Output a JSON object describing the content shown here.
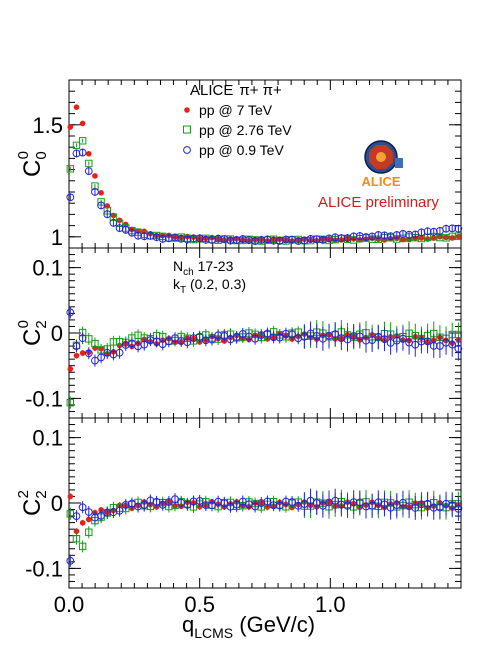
{
  "header": {
    "experiment": "ALICE",
    "particles": "π+ π+",
    "logo_text": "ALICE",
    "preliminary": "ALICE preliminary"
  },
  "annotation": {
    "nch_main": "N",
    "nch_sub": "ch",
    "nch_range": " 17-23",
    "kt_main": "k",
    "kt_sub": "T",
    "kt_range": " (0.2, 0.3)"
  },
  "colors": {
    "pp7": "#e8201a",
    "pp276": "#169c16",
    "pp09": "#2525d6",
    "preliminary": "#d21c1c",
    "logo_orange": "#f28a1d"
  },
  "chart_data": [
    {
      "type": "scatter",
      "panel": "top",
      "ylabel_main": "C",
      "ylabel_sub": "0",
      "ylabel_sup": "0",
      "ylim": [
        0.95,
        1.7
      ],
      "yticks": [
        1,
        1.5
      ],
      "ytick_labels": [
        "1",
        "1.5"
      ],
      "xlim": [
        0,
        1.5
      ],
      "legend": "top-center",
      "series": [
        {
          "name": "pp @ 7 TeV",
          "marker": "filled-circle",
          "x": [
            0.005,
            0.025,
            0.045,
            0.065,
            0.09,
            0.13,
            0.18,
            0.25,
            0.35,
            0.5,
            0.7,
            0.9,
            1.1,
            1.3,
            1.49
          ],
          "y": [
            1.49,
            1.58,
            1.55,
            1.43,
            1.3,
            1.17,
            1.08,
            1.03,
            1.005,
            0.995,
            0.985,
            0.985,
            0.99,
            0.99,
            1.0
          ]
        },
        {
          "name": "pp @ 2.76 TeV",
          "marker": "open-square",
          "x": [
            0.005,
            0.025,
            0.045,
            0.065,
            0.09,
            0.13,
            0.18,
            0.25,
            0.35,
            0.5,
            0.7,
            0.9,
            1.1,
            1.3,
            1.49
          ],
          "y": [
            1.3,
            1.4,
            1.46,
            1.38,
            1.25,
            1.14,
            1.07,
            1.02,
            1.0,
            0.99,
            0.985,
            0.985,
            0.99,
            0.995,
            1.0
          ]
        },
        {
          "name": "pp @ 0.9 TeV",
          "marker": "open-circle",
          "x": [
            0.005,
            0.025,
            0.045,
            0.065,
            0.09,
            0.13,
            0.18,
            0.25,
            0.35,
            0.5,
            0.7,
            0.9,
            1.1,
            1.3,
            1.49
          ],
          "y": [
            1.18,
            1.37,
            1.39,
            1.34,
            1.23,
            1.12,
            1.05,
            1.01,
            0.995,
            0.99,
            0.985,
            0.985,
            1.0,
            1.01,
            1.04
          ]
        }
      ]
    },
    {
      "type": "scatter",
      "panel": "middle",
      "ylabel_main": "C",
      "ylabel_sub": "2",
      "ylabel_sup": "0",
      "ylim": [
        -0.13,
        0.13
      ],
      "yticks": [
        -0.1,
        0,
        0.1
      ],
      "ytick_labels": [
        "-0.1",
        "0",
        "0.1"
      ],
      "xlim": [
        0,
        1.5
      ],
      "series": [
        {
          "name": "pp @ 7 TeV",
          "x": [
            0.005,
            0.025,
            0.05,
            0.08,
            0.11,
            0.14,
            0.18,
            0.22,
            0.3,
            0.4,
            0.6,
            0.8,
            1.0,
            1.2,
            1.49
          ],
          "y": [
            -0.055,
            -0.04,
            -0.03,
            -0.025,
            -0.025,
            -0.03,
            -0.025,
            -0.018,
            -0.013,
            -0.012,
            -0.008,
            -0.005,
            -0.006,
            -0.007,
            -0.012
          ]
        },
        {
          "name": "pp @ 2.76 TeV",
          "x": [
            0.005,
            0.025,
            0.05,
            0.08,
            0.11,
            0.14,
            0.18,
            0.22,
            0.3,
            0.4,
            0.6,
            0.8,
            1.0,
            1.2,
            1.49
          ],
          "y": [
            -0.11,
            -0.02,
            0.005,
            -0.015,
            -0.02,
            -0.025,
            -0.015,
            -0.01,
            -0.005,
            -0.01,
            -0.005,
            -0.002,
            -0.002,
            -0.004,
            -0.005
          ]
        },
        {
          "name": "pp @ 0.9 TeV",
          "x": [
            0.005,
            0.025,
            0.05,
            0.08,
            0.11,
            0.14,
            0.18,
            0.22,
            0.3,
            0.4,
            0.6,
            0.8,
            1.0,
            1.2,
            1.49
          ],
          "y": [
            0.035,
            -0.02,
            -0.01,
            -0.035,
            -0.04,
            -0.035,
            -0.03,
            -0.02,
            -0.015,
            -0.012,
            -0.006,
            -0.004,
            -0.005,
            -0.01,
            -0.02
          ]
        }
      ]
    },
    {
      "type": "scatter",
      "panel": "bottom",
      "ylabel_main": "C",
      "ylabel_sub": "2",
      "ylabel_sup": "2",
      "ylim": [
        -0.13,
        0.13
      ],
      "yticks": [
        -0.1,
        0,
        0.1
      ],
      "ytick_labels": [
        "-0.1",
        "0",
        "0.1"
      ],
      "xlim": [
        0,
        1.5
      ],
      "xticks": [
        0,
        0.5,
        1.0
      ],
      "xtick_labels": [
        "0.0",
        "0.5",
        "1.0"
      ],
      "xlabel_main": "q",
      "xlabel_sub": "LCMS",
      "xlabel_unit": " (GeV/c)",
      "series": [
        {
          "name": "pp @ 7 TeV",
          "x": [
            0.005,
            0.025,
            0.05,
            0.08,
            0.11,
            0.14,
            0.18,
            0.22,
            0.3,
            0.4,
            0.6,
            0.8,
            1.0,
            1.2,
            1.49
          ],
          "y": [
            0.01,
            -0.05,
            -0.03,
            -0.02,
            -0.015,
            -0.012,
            -0.008,
            -0.005,
            -0.002,
            -0.002,
            -0.002,
            -0.003,
            -0.002,
            -0.003,
            -0.004
          ]
        },
        {
          "name": "pp @ 2.76 TeV",
          "x": [
            0.005,
            0.025,
            0.05,
            0.08,
            0.11,
            0.14,
            0.18,
            0.22,
            0.3,
            0.4,
            0.6,
            0.8,
            1.0,
            1.2,
            1.49
          ],
          "y": [
            -0.02,
            -0.05,
            -0.065,
            -0.045,
            -0.02,
            -0.015,
            -0.01,
            -0.004,
            -0.002,
            -0.002,
            -0.002,
            -0.002,
            -0.002,
            -0.002,
            -0.004
          ]
        },
        {
          "name": "pp @ 0.9 TeV",
          "x": [
            0.005,
            0.025,
            0.05,
            0.08,
            0.11,
            0.14,
            0.18,
            0.22,
            0.3,
            0.4,
            0.6,
            0.8,
            1.0,
            1.2,
            1.49
          ],
          "y": [
            -0.085,
            -0.02,
            -0.01,
            -0.015,
            -0.02,
            -0.02,
            -0.01,
            -0.005,
            0.0,
            0.002,
            -0.002,
            -0.001,
            0.0,
            -0.003,
            -0.005
          ]
        }
      ]
    }
  ]
}
